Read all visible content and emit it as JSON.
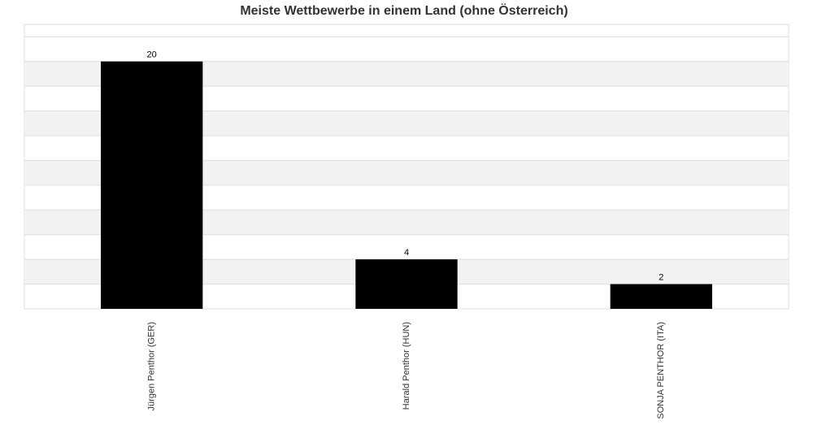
{
  "chart_data": {
    "type": "bar",
    "title": "Meiste Wettbewerbe in einem Land (ohne Österreich)",
    "categories": [
      "Jürgen Penthor (GER)",
      "Harald Penthor (HUN)",
      "SONJA PENTHOR (ITA)"
    ],
    "values": [
      20,
      4,
      2
    ],
    "color": "#000000",
    "ylim": [
      0,
      23
    ],
    "yticks": [
      0,
      2,
      4,
      6,
      8,
      10,
      12,
      14,
      16,
      18,
      20,
      22
    ],
    "grid": true,
    "alternate_bands": true
  }
}
